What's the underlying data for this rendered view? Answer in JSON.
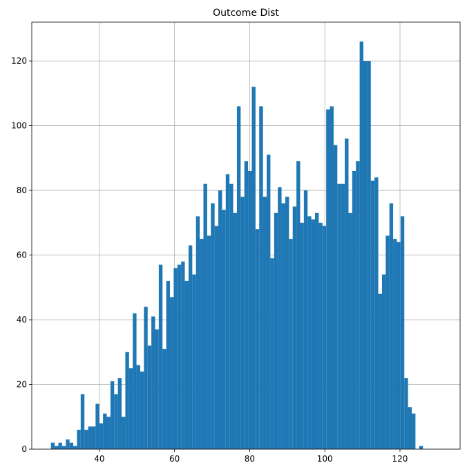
{
  "chart_data": {
    "type": "bar",
    "title": "Outcome Dist",
    "xlabel": "",
    "ylabel": "",
    "xlim": [
      22,
      136
    ],
    "ylim": [
      0,
      132
    ],
    "grid": true,
    "bar_color": "#1f77b4",
    "grid_color": "#b0b0b0",
    "bin_start": 27.1,
    "bin_width": 0.99,
    "xticks": [
      40,
      60,
      80,
      100,
      120
    ],
    "yticks": [
      0,
      20,
      40,
      60,
      80,
      100,
      120
    ],
    "values": [
      2,
      1,
      2,
      1,
      3,
      2,
      1,
      6,
      17,
      6,
      7,
      7,
      14,
      8,
      11,
      10,
      21,
      17,
      22,
      10,
      30,
      25,
      42,
      26,
      24,
      44,
      32,
      41,
      37,
      57,
      31,
      52,
      47,
      56,
      57,
      58,
      52,
      63,
      54,
      72,
      65,
      82,
      66,
      76,
      69,
      80,
      74,
      85,
      82,
      73,
      106,
      78,
      89,
      86,
      112,
      68,
      106,
      78,
      91,
      59,
      73,
      81,
      76,
      78,
      65,
      75,
      89,
      70,
      80,
      72,
      71,
      73,
      70,
      69,
      105,
      106,
      94,
      82,
      82,
      96,
      73,
      86,
      89,
      126,
      120,
      120,
      83,
      84,
      48,
      54,
      66,
      76,
      65,
      64,
      72,
      22,
      13,
      11,
      0,
      1
    ]
  }
}
